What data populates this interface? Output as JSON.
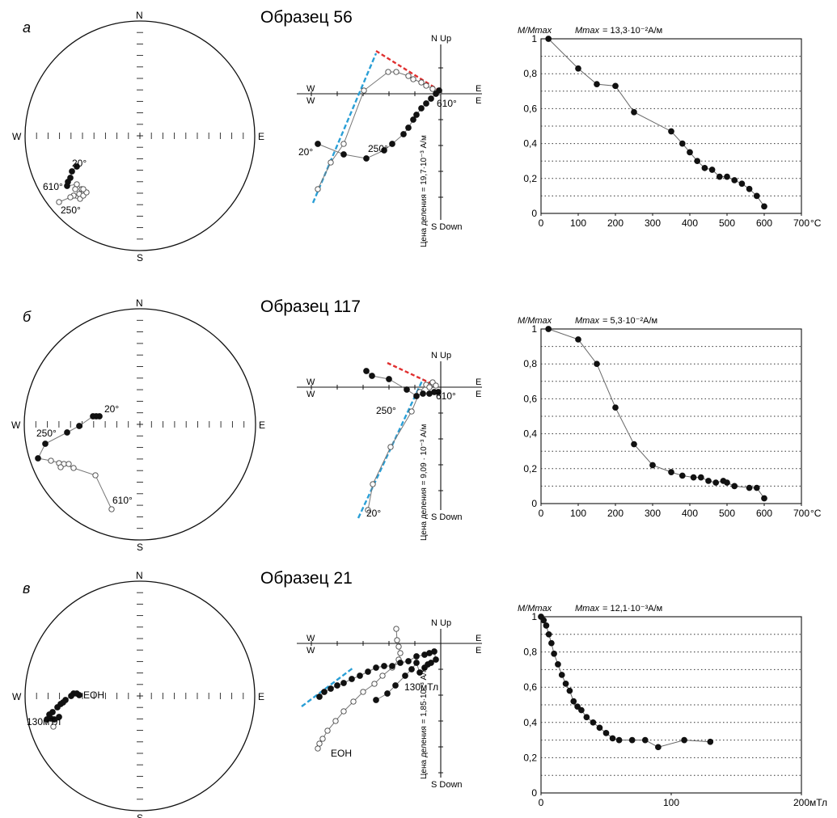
{
  "panels": [
    {
      "letter": "а",
      "sample_title": "Образец 56",
      "stereonet": {
        "labels": {
          "n": "N",
          "s": "S",
          "e": "E",
          "w": "W"
        },
        "annotations": [
          "20°",
          "610°",
          "250°"
        ]
      },
      "zijderveld": {
        "axis_labels": {
          "up": "N Up",
          "down": "S Down",
          "w_top": "W",
          "w_bottom": "W",
          "e_top": "E",
          "e_bottom": "E"
        },
        "annotations": [
          "610°",
          "20°",
          "250°"
        ],
        "scale_label": "Цена деления = 19,7·10⁻³ А/м"
      },
      "demag": {
        "ylabel_prefix": "M/Mmax",
        "max_label": "Mmax",
        "max_value": "= 13,3·10⁻²А/м",
        "x_unit": "°C",
        "x_ticks": [
          "0",
          "100",
          "200",
          "300",
          "400",
          "500",
          "600",
          "700"
        ],
        "y_ticks": [
          "0",
          "0,2",
          "0,4",
          "0,6",
          "0,8",
          "1"
        ]
      }
    },
    {
      "letter": "б",
      "sample_title": "Образец 117",
      "stereonet": {
        "labels": {
          "n": "N",
          "s": "S",
          "e": "E",
          "w": "W"
        },
        "annotations": [
          "20°",
          "250°",
          "610°"
        ]
      },
      "zijderveld": {
        "axis_labels": {
          "up": "N Up",
          "down": "S Down",
          "w_top": "W",
          "w_bottom": "W",
          "e_top": "E",
          "e_bottom": "E"
        },
        "annotations": [
          "610°",
          "250°",
          "20°"
        ],
        "scale_label": "Цена деления = 9,09 · 10⁻³ А/м"
      },
      "demag": {
        "ylabel_prefix": "M/Mmax",
        "max_label": "Mmax",
        "max_value": "= 5,3·10⁻²А/м",
        "x_unit": "°C",
        "x_ticks": [
          "0",
          "100",
          "200",
          "300",
          "400",
          "500",
          "600",
          "700"
        ],
        "y_ticks": [
          "0",
          "0,2",
          "0,4",
          "0,6",
          "0,8",
          "1"
        ]
      }
    },
    {
      "letter": "в",
      "sample_title": "Образец 21",
      "stereonet": {
        "labels": {
          "n": "N",
          "s": "S",
          "e": "E",
          "w": "W"
        },
        "annotations": [
          "EOH",
          "130мТл"
        ]
      },
      "zijderveld": {
        "axis_labels": {
          "up": "N Up",
          "down": "S Down",
          "w_top": "W",
          "w_bottom": "W",
          "e_top": "E",
          "e_bottom": "E"
        },
        "annotations": [
          "130мТл",
          "EOH"
        ],
        "scale_label": "Цена деления = 1,85·10⁻³ А/м"
      },
      "demag": {
        "ylabel_prefix": "M/Mmax",
        "max_label": "Mmax",
        "max_value": "= 12,1·10⁻³А/м",
        "x_unit": "мТл",
        "x_ticks": [
          "0",
          "100",
          "200"
        ],
        "y_ticks": [
          "0",
          "0,2",
          "0,4",
          "0,6",
          "0,8",
          "1"
        ]
      }
    }
  ],
  "colors": {
    "line": "#777777",
    "point": "#111111",
    "fit_blue": "#2a9fd6",
    "fit_red": "#e03030",
    "grid": "#333333"
  },
  "chart_data": [
    {
      "type": "scatter",
      "title": "Образец 56",
      "xlabel": "°C",
      "ylabel": "M/Mmax",
      "xlim": [
        0,
        700
      ],
      "ylim": [
        0,
        1
      ],
      "x": [
        20,
        100,
        150,
        200,
        250,
        350,
        380,
        400,
        420,
        440,
        460,
        480,
        500,
        520,
        540,
        560,
        580,
        600
      ],
      "y": [
        1.0,
        0.83,
        0.74,
        0.73,
        0.58,
        0.47,
        0.4,
        0.35,
        0.3,
        0.26,
        0.25,
        0.21,
        0.21,
        0.19,
        0.17,
        0.14,
        0.1,
        0.04
      ]
    },
    {
      "type": "scatter",
      "title": "Образец 117",
      "xlabel": "°C",
      "ylabel": "M/Mmax",
      "xlim": [
        0,
        700
      ],
      "ylim": [
        0,
        1
      ],
      "x": [
        20,
        100,
        150,
        200,
        250,
        300,
        350,
        380,
        410,
        430,
        450,
        470,
        490,
        500,
        520,
        560,
        580,
        600
      ],
      "y": [
        1.0,
        0.94,
        0.8,
        0.55,
        0.34,
        0.22,
        0.18,
        0.16,
        0.15,
        0.15,
        0.13,
        0.12,
        0.13,
        0.12,
        0.1,
        0.09,
        0.09,
        0.03
      ]
    },
    {
      "type": "scatter",
      "title": "Образец 21",
      "xlabel": "мТл",
      "ylabel": "M/Mmax",
      "xlim": [
        0,
        200
      ],
      "ylim": [
        0,
        1
      ],
      "x": [
        0,
        2,
        4,
        6,
        8,
        10,
        13,
        16,
        19,
        22,
        25,
        28,
        31,
        35,
        40,
        45,
        50,
        55,
        60,
        70,
        80,
        90,
        110,
        130
      ],
      "y": [
        1.0,
        0.98,
        0.95,
        0.9,
        0.85,
        0.79,
        0.73,
        0.67,
        0.62,
        0.58,
        0.52,
        0.49,
        0.47,
        0.43,
        0.4,
        0.37,
        0.34,
        0.31,
        0.3,
        0.3,
        0.3,
        0.26,
        0.3,
        0.29
      ]
    }
  ]
}
